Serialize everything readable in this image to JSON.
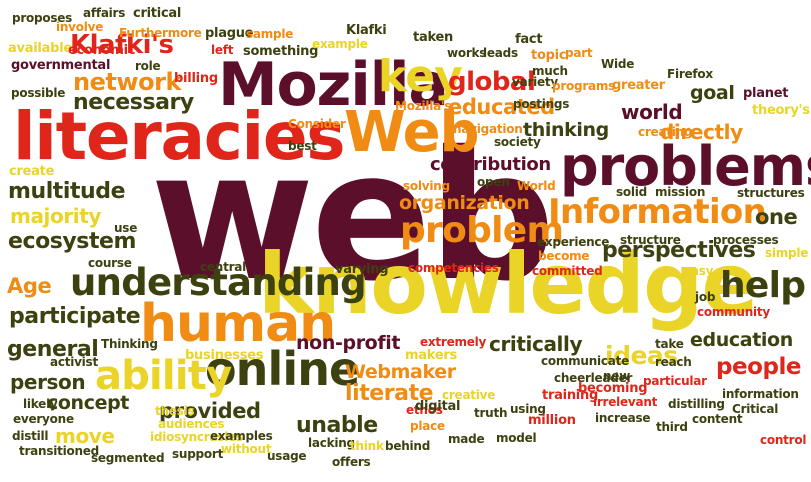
{
  "palette": {
    "maroon": "#5c0f2a",
    "red": "#e0261b",
    "orange": "#f08c14",
    "yellow": "#ead428",
    "olive": "#3d4110"
  },
  "words": [
    {
      "text": "web",
      "color": "maroon"
    },
    {
      "text": "knowledge",
      "color": "yellow"
    },
    {
      "text": "literacies",
      "color": "red"
    },
    {
      "text": "Mozilla",
      "color": "maroon"
    },
    {
      "text": "problems",
      "color": "maroon"
    },
    {
      "text": "Web",
      "color": "orange"
    },
    {
      "text": "human",
      "color": "orange"
    },
    {
      "text": "online",
      "color": "olive"
    },
    {
      "text": "understanding",
      "color": "olive"
    },
    {
      "text": "Information",
      "color": "orange"
    },
    {
      "text": "problem",
      "color": "orange"
    },
    {
      "text": "key",
      "color": "yellow"
    },
    {
      "text": "ability",
      "color": "yellow"
    },
    {
      "text": "help",
      "color": "olive"
    },
    {
      "text": "network",
      "color": "orange"
    },
    {
      "text": "necessary",
      "color": "olive"
    },
    {
      "text": "global",
      "color": "red"
    },
    {
      "text": "educated",
      "color": "orange"
    },
    {
      "text": "Klafki's",
      "color": "red"
    },
    {
      "text": "unable",
      "color": "olive"
    },
    {
      "text": "literate",
      "color": "orange"
    },
    {
      "text": "thinking",
      "color": "olive"
    },
    {
      "text": "world",
      "color": "maroon"
    },
    {
      "text": "goal",
      "color": "olive"
    },
    {
      "text": "directly",
      "color": "orange"
    },
    {
      "text": "multitude",
      "color": "olive"
    },
    {
      "text": "majority",
      "color": "yellow"
    },
    {
      "text": "ecosystem",
      "color": "olive"
    },
    {
      "text": "organization",
      "color": "orange"
    },
    {
      "text": "contribution",
      "color": "maroon"
    },
    {
      "text": "perspectives",
      "color": "olive"
    },
    {
      "text": "one",
      "color": "olive"
    },
    {
      "text": "participate",
      "color": "olive"
    },
    {
      "text": "general",
      "color": "olive"
    },
    {
      "text": "non-profit",
      "color": "maroon"
    },
    {
      "text": "critically",
      "color": "olive"
    },
    {
      "text": "ideas",
      "color": "yellow"
    },
    {
      "text": "education",
      "color": "olive"
    },
    {
      "text": "people",
      "color": "red"
    },
    {
      "text": "person",
      "color": "olive"
    },
    {
      "text": "concept",
      "color": "olive"
    },
    {
      "text": "provided",
      "color": "olive"
    },
    {
      "text": "Webmaker",
      "color": "orange"
    },
    {
      "text": "move",
      "color": "yellow"
    },
    {
      "text": "Age",
      "color": "orange"
    },
    {
      "text": "proposes",
      "color": "olive"
    },
    {
      "text": "affairs",
      "color": "olive"
    },
    {
      "text": "critical",
      "color": "olive"
    },
    {
      "text": "plague",
      "color": "olive"
    },
    {
      "text": "sample",
      "color": "orange"
    },
    {
      "text": "Klafki",
      "color": "olive"
    },
    {
      "text": "involve",
      "color": "orange"
    },
    {
      "text": "Furthermore",
      "color": "orange"
    },
    {
      "text": "taken",
      "color": "olive"
    },
    {
      "text": "fact",
      "color": "olive"
    },
    {
      "text": "available",
      "color": "yellow"
    },
    {
      "text": "economic",
      "color": "red"
    },
    {
      "text": "left",
      "color": "red"
    },
    {
      "text": "something",
      "color": "olive"
    },
    {
      "text": "example",
      "color": "yellow"
    },
    {
      "text": "works",
      "color": "olive"
    },
    {
      "text": "leads",
      "color": "olive"
    },
    {
      "text": "topic",
      "color": "orange"
    },
    {
      "text": "part",
      "color": "orange"
    },
    {
      "text": "role",
      "color": "olive"
    },
    {
      "text": "Wide",
      "color": "olive"
    },
    {
      "text": "governmental",
      "color": "maroon"
    },
    {
      "text": "billing",
      "color": "red"
    },
    {
      "text": "much",
      "color": "olive"
    },
    {
      "text": "Firefox",
      "color": "olive"
    },
    {
      "text": "variety",
      "color": "olive"
    },
    {
      "text": "possible",
      "color": "olive"
    },
    {
      "text": "programs",
      "color": "orange"
    },
    {
      "text": "greater",
      "color": "orange"
    },
    {
      "text": "planet",
      "color": "maroon"
    },
    {
      "text": "Mozilla's",
      "color": "orange"
    },
    {
      "text": "postings",
      "color": "olive"
    },
    {
      "text": "theory's",
      "color": "yellow"
    },
    {
      "text": "Consider",
      "color": "orange"
    },
    {
      "text": "navigation",
      "color": "orange"
    },
    {
      "text": "creating",
      "color": "orange"
    },
    {
      "text": "best",
      "color": "olive"
    },
    {
      "text": "society",
      "color": "olive"
    },
    {
      "text": "create",
      "color": "yellow"
    },
    {
      "text": "open",
      "color": "olive"
    },
    {
      "text": "World",
      "color": "orange"
    },
    {
      "text": "solving",
      "color": "orange"
    },
    {
      "text": "solid",
      "color": "olive"
    },
    {
      "text": "mission",
      "color": "olive"
    },
    {
      "text": "structures",
      "color": "olive"
    },
    {
      "text": "use",
      "color": "olive"
    },
    {
      "text": "experience",
      "color": "olive"
    },
    {
      "text": "structure",
      "color": "olive"
    },
    {
      "text": "processes",
      "color": "olive"
    },
    {
      "text": "become",
      "color": "orange"
    },
    {
      "text": "simple",
      "color": "yellow"
    },
    {
      "text": "course",
      "color": "olive"
    },
    {
      "text": "central",
      "color": "olive"
    },
    {
      "text": "varying",
      "color": "olive"
    },
    {
      "text": "competencies",
      "color": "red"
    },
    {
      "text": "committed",
      "color": "red"
    },
    {
      "text": "easy",
      "color": "yellow"
    },
    {
      "text": "job",
      "color": "olive"
    },
    {
      "text": "community",
      "color": "red"
    },
    {
      "text": "extremely",
      "color": "red"
    },
    {
      "text": "take",
      "color": "olive"
    },
    {
      "text": "Thinking",
      "color": "olive"
    },
    {
      "text": "makers",
      "color": "yellow"
    },
    {
      "text": "communicate",
      "color": "olive"
    },
    {
      "text": "reach",
      "color": "olive"
    },
    {
      "text": "activist",
      "color": "olive"
    },
    {
      "text": "businesses",
      "color": "yellow"
    },
    {
      "text": "cheerleader",
      "color": "olive"
    },
    {
      "text": "new",
      "color": "olive"
    },
    {
      "text": "particular",
      "color": "red"
    },
    {
      "text": "likely",
      "color": "olive"
    },
    {
      "text": "thesis",
      "color": "yellow"
    },
    {
      "text": "creative",
      "color": "yellow"
    },
    {
      "text": "training",
      "color": "red"
    },
    {
      "text": "becoming",
      "color": "red"
    },
    {
      "text": "information",
      "color": "olive"
    },
    {
      "text": "everyone",
      "color": "olive"
    },
    {
      "text": "audiences",
      "color": "yellow"
    },
    {
      "text": "ethos",
      "color": "red"
    },
    {
      "text": "digital",
      "color": "olive"
    },
    {
      "text": "truth",
      "color": "olive"
    },
    {
      "text": "using",
      "color": "olive"
    },
    {
      "text": "irrelevant",
      "color": "red"
    },
    {
      "text": "distilling",
      "color": "olive"
    },
    {
      "text": "Critical",
      "color": "olive"
    },
    {
      "text": "distill",
      "color": "olive"
    },
    {
      "text": "idiosyncrasies",
      "color": "yellow"
    },
    {
      "text": "examples",
      "color": "olive"
    },
    {
      "text": "place",
      "color": "orange"
    },
    {
      "text": "million",
      "color": "red"
    },
    {
      "text": "increase",
      "color": "olive"
    },
    {
      "text": "third",
      "color": "olive"
    },
    {
      "text": "content",
      "color": "olive"
    },
    {
      "text": "transitioned",
      "color": "olive"
    },
    {
      "text": "segmented",
      "color": "olive"
    },
    {
      "text": "support",
      "color": "olive"
    },
    {
      "text": "without",
      "color": "yellow"
    },
    {
      "text": "usage",
      "color": "olive"
    },
    {
      "text": "lacking",
      "color": "olive"
    },
    {
      "text": "think",
      "color": "yellow"
    },
    {
      "text": "behind",
      "color": "olive"
    },
    {
      "text": "offers",
      "color": "olive"
    },
    {
      "text": "made",
      "color": "olive"
    },
    {
      "text": "model",
      "color": "olive"
    },
    {
      "text": "control",
      "color": "red"
    }
  ]
}
